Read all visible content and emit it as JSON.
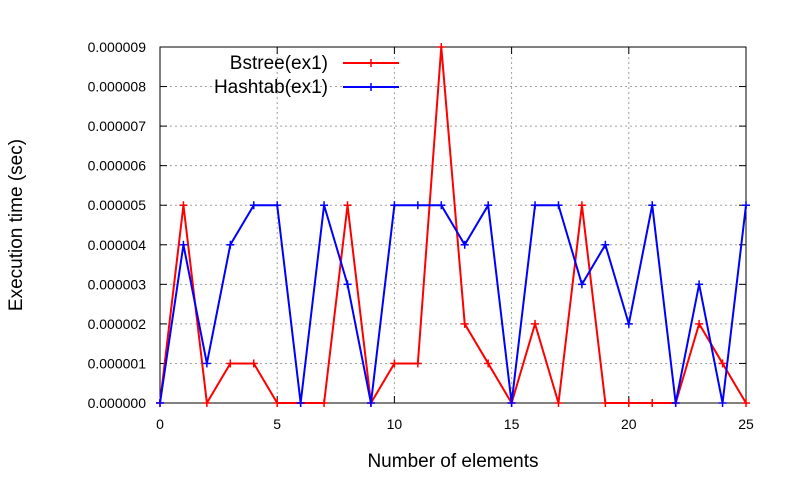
{
  "chart_data": {
    "type": "line",
    "xlabel": "Number of elements",
    "ylabel": "Execution time (sec)",
    "xlim": [
      0,
      25
    ],
    "ylim": [
      0,
      9e-06
    ],
    "grid": true,
    "legend_position": "top-left",
    "x_ticks": [
      "0",
      "5",
      "10",
      "15",
      "20",
      "25"
    ],
    "y_ticks": [
      "0.000000",
      "0.000001",
      "0.000002",
      "0.000003",
      "0.000004",
      "0.000005",
      "0.000006",
      "0.000007",
      "0.000008",
      "0.000009"
    ],
    "x": [
      0,
      1,
      2,
      3,
      4,
      5,
      6,
      7,
      8,
      9,
      10,
      11,
      12,
      13,
      14,
      15,
      16,
      17,
      18,
      19,
      20,
      21,
      22,
      23,
      24,
      25
    ],
    "series": [
      {
        "name": "Bstree(ex1)",
        "color": "#ff0000",
        "values": [
          0,
          5e-06,
          0,
          1e-06,
          1e-06,
          0,
          0,
          0,
          5e-06,
          0,
          1e-06,
          1e-06,
          9e-06,
          2e-06,
          1e-06,
          0,
          2e-06,
          0,
          5e-06,
          0,
          0,
          0,
          0,
          2e-06,
          1e-06,
          0
        ]
      },
      {
        "name": "Hashtab(ex1)",
        "color": "#0000ff",
        "values": [
          0,
          4e-06,
          1e-06,
          4e-06,
          5e-06,
          5e-06,
          0,
          5e-06,
          3e-06,
          0,
          5e-06,
          5e-06,
          5e-06,
          4e-06,
          5e-06,
          0,
          5e-06,
          5e-06,
          3e-06,
          4e-06,
          2e-06,
          5e-06,
          0,
          3e-06,
          0,
          5e-06
        ]
      }
    ]
  }
}
